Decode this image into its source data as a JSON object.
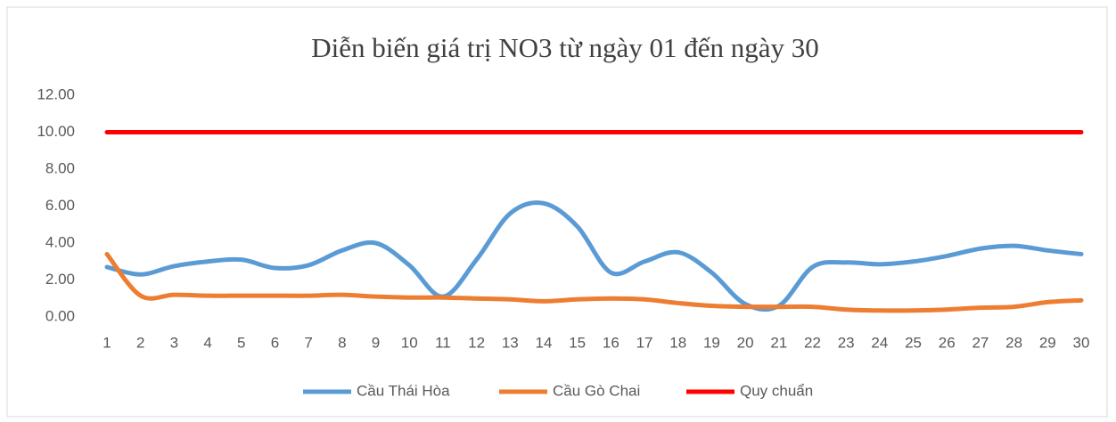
{
  "chart_data": {
    "type": "line",
    "title": "Diễn biến giá trị NO3 từ ngày  01 đến ngày  30",
    "categories": [
      "1",
      "2",
      "3",
      "4",
      "5",
      "6",
      "7",
      "8",
      "9",
      "10",
      "11",
      "12",
      "13",
      "14",
      "15",
      "16",
      "17",
      "18",
      "19",
      "20",
      "21",
      "22",
      "23",
      "24",
      "25",
      "26",
      "27",
      "28",
      "29",
      "30"
    ],
    "series": [
      {
        "name": "Cầu Thái Hòa",
        "color": "#5b9bd5",
        "values": [
          2.7,
          2.3,
          2.75,
          3.0,
          3.1,
          2.65,
          2.8,
          3.6,
          4.0,
          2.8,
          1.1,
          3.1,
          5.6,
          6.15,
          4.9,
          2.4,
          3.0,
          3.5,
          2.4,
          0.7,
          0.6,
          2.7,
          2.95,
          2.85,
          3.0,
          3.3,
          3.7,
          3.85,
          3.6,
          3.4
        ]
      },
      {
        "name": "Cầu Gò Chai",
        "color": "#ed7d31",
        "values": [
          3.4,
          1.15,
          1.2,
          1.15,
          1.15,
          1.15,
          1.15,
          1.2,
          1.1,
          1.05,
          1.05,
          1.0,
          0.95,
          0.85,
          0.95,
          1.0,
          0.95,
          0.75,
          0.6,
          0.55,
          0.55,
          0.55,
          0.4,
          0.35,
          0.35,
          0.4,
          0.5,
          0.55,
          0.8,
          0.9
        ]
      },
      {
        "name": "Quy chuẩn",
        "color": "#ff0000",
        "values": [
          10,
          10,
          10,
          10,
          10,
          10,
          10,
          10,
          10,
          10,
          10,
          10,
          10,
          10,
          10,
          10,
          10,
          10,
          10,
          10,
          10,
          10,
          10,
          10,
          10,
          10,
          10,
          10,
          10,
          10
        ]
      }
    ],
    "ylim": [
      0,
      12
    ],
    "yticks": [
      {
        "value": 0,
        "label": "0.00"
      },
      {
        "value": 2,
        "label": "2.00"
      },
      {
        "value": 4,
        "label": "4.00"
      },
      {
        "value": 6,
        "label": "6.00"
      },
      {
        "value": 8,
        "label": "8.00"
      },
      {
        "value": 10,
        "label": "10.00"
      },
      {
        "value": 12,
        "label": "12.00"
      }
    ],
    "grid": false,
    "legend": "bottom",
    "smooth": true
  }
}
